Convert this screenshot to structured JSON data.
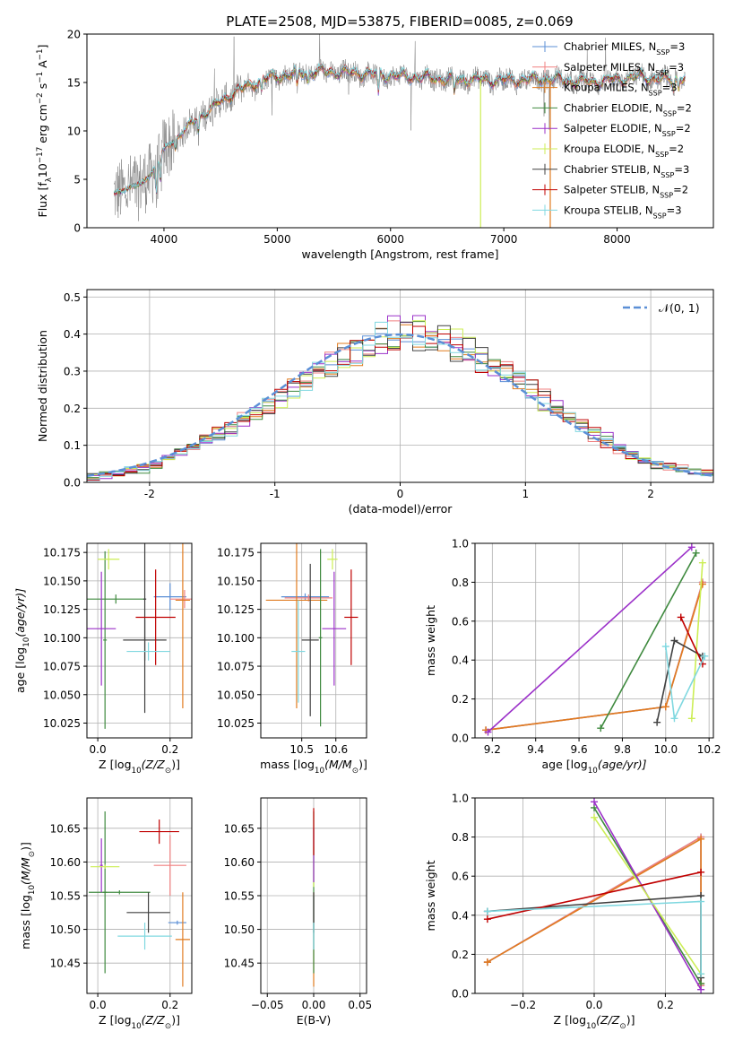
{
  "figure": {
    "title": "PLATE=2508, MJD=53875, FIBERID=0085, z=0.069"
  },
  "colors": {
    "Chabrier MILES": "#5b8fd6",
    "Salpeter MILES": "#f08080",
    "Kroupa MILES": "#e07b1f",
    "Chabrier ELODIE": "#3f8a3f",
    "Salpeter ELODIE": "#9b30c9",
    "Kroupa ELODIE": "#ccee55",
    "Chabrier STELIB": "#404040",
    "Salpeter STELIB": "#c00000",
    "Kroupa STELIB": "#80d8e0",
    "data": "#808080",
    "normal": "#5b8fd6"
  },
  "chart_data": [
    {
      "id": "spectrum",
      "type": "line",
      "title": "PLATE=2508, MJD=53875, FIBERID=0085, z=0.069",
      "xlabel": "wavelength [Angstrom, rest frame]",
      "ylabel_parts": [
        "Flux [f",
        "λ",
        "10",
        "−17",
        " erg cm",
        "−2",
        " s",
        "−1",
        " A",
        "−1",
        "]"
      ],
      "xlim": [
        3320,
        8850
      ],
      "ylim": [
        0,
        20
      ],
      "xticks": [
        4000,
        5000,
        6000,
        7000,
        8000
      ],
      "yticks": [
        0,
        5,
        10,
        15,
        20
      ],
      "grid": false,
      "legend_position": "upper right",
      "legend": [
        {
          "base": "Chabrier MILES, N",
          "sub": "SSP",
          "tail": "=3"
        },
        {
          "base": "Salpeter MILES, N",
          "sub": "SSP",
          "tail": "=3"
        },
        {
          "base": "Kroupa MILES, N",
          "sub": "SSP",
          "tail": "=3"
        },
        {
          "base": "Chabrier ELODIE, N",
          "sub": "SSP",
          "tail": "=2"
        },
        {
          "base": "Salpeter ELODIE, N",
          "sub": "SSP",
          "tail": "=2"
        },
        {
          "base": "Kroupa ELODIE, N",
          "sub": "SSP",
          "tail": "=2"
        },
        {
          "base": "Chabrier STELIB, N",
          "sub": "SSP",
          "tail": "=3"
        },
        {
          "base": "Salpeter STELIB, N",
          "sub": "SSP",
          "tail": "=2"
        },
        {
          "base": "Kroupa STELIB, N",
          "sub": "SSP",
          "tail": "=3"
        }
      ],
      "continuum": {
        "x": [
          3560,
          3700,
          3800,
          3900,
          4000,
          4100,
          4200,
          4300,
          4400,
          4500,
          4600,
          4700,
          4800,
          4900,
          5000,
          5200,
          5400,
          5600,
          5800,
          6000,
          6200,
          6400,
          6600,
          6800,
          7000,
          7200,
          7400,
          7600,
          7800,
          8000,
          8200,
          8400,
          8600
        ],
        "y": [
          3.5,
          4.2,
          4.5,
          5.8,
          8.0,
          9.2,
          10.3,
          11.3,
          12.2,
          13.0,
          13.8,
          14.4,
          14.9,
          15.4,
          15.6,
          16.0,
          16.1,
          16.0,
          15.9,
          15.7,
          15.6,
          15.4,
          15.3,
          15.3,
          15.2,
          15.3,
          15.4,
          15.1,
          15.1,
          15.3,
          15.6,
          15.3,
          15.5
        ]
      },
      "absorption_features": [
        {
          "x": 3933,
          "depth": 0.45
        },
        {
          "x": 3968,
          "depth": 0.35
        },
        {
          "x": 4102,
          "depth": 0.12
        },
        {
          "x": 4304,
          "depth": 0.12
        },
        {
          "x": 4861,
          "depth": 0.08
        },
        {
          "x": 5175,
          "depth": 0.1
        },
        {
          "x": 5270,
          "depth": 0.06
        },
        {
          "x": 5893,
          "depth": 0.14
        },
        {
          "x": 6563,
          "depth": 0.1
        },
        {
          "x": 8498,
          "depth": 0.06
        },
        {
          "x": 8542,
          "depth": 0.07
        },
        {
          "x": 8662,
          "depth": 0.06
        }
      ],
      "masked_gaps": [
        {
          "x": 6795,
          "color_key": "Kroupa ELODIE"
        },
        {
          "x": 7410,
          "color_key": "Kroupa MILES"
        }
      ]
    },
    {
      "id": "residuals",
      "type": "bar",
      "xlabel": "(data-model)/error",
      "ylabel": "Normed distribution",
      "xlim": [
        -2.5,
        2.5
      ],
      "ylim": [
        0,
        0.52
      ],
      "xticks": [
        -2,
        -1,
        0,
        1,
        2
      ],
      "yticks": [
        0.0,
        0.1,
        0.2,
        0.3,
        0.4,
        0.5
      ],
      "grid": true,
      "bin_width": 0.1,
      "legend_position": "upper right",
      "normal_curve": {
        "label": "𝒩(0, 1)",
        "mean": 0,
        "sigma": 1
      },
      "histogram_envelope": {
        "x": [
          -2.5,
          -2.0,
          -1.5,
          -1.0,
          -0.5,
          0.0,
          0.5,
          1.0,
          1.5,
          2.0,
          2.5
        ],
        "y": [
          0.01,
          0.04,
          0.12,
          0.22,
          0.33,
          0.41,
          0.37,
          0.26,
          0.14,
          0.05,
          0.02
        ]
      }
    },
    {
      "id": "age-vs-Z",
      "type": "scatter",
      "xlabel_parts": [
        "Z [log",
        "10",
        "(Z/Z",
        "⊙",
        ")]"
      ],
      "ylabel_parts": [
        "age  [log",
        "10",
        "(age/yr)]"
      ],
      "xlim": [
        -0.03,
        0.26
      ],
      "ylim": [
        10.012,
        10.183
      ],
      "xticks": [
        0.0,
        0.2
      ],
      "xtick_labels": [
        "0.0",
        "0.2"
      ],
      "yticks": [
        10.025,
        10.05,
        10.075,
        10.1,
        10.125,
        10.15,
        10.175
      ],
      "ytick_labels": [
        "10.025",
        "10.050",
        "10.075",
        "10.100",
        "10.125",
        "10.150",
        "10.175"
      ],
      "grid": true,
      "points": [
        {
          "model": "Chabrier MILES",
          "x": 0.2,
          "xerr": 0.045,
          "y": 10.136,
          "yerr": 0.012
        },
        {
          "model": "Salpeter MILES",
          "x": 0.24,
          "xerr": 0.04,
          "y": 10.134,
          "yerr": 0.008
        },
        {
          "model": "Kroupa MILES",
          "x": 0.235,
          "xerr": 0.02,
          "y": 10.133,
          "yerr": 0.095
        },
        {
          "model": "Chabrier ELODIE",
          "x": 0.02,
          "xerr": 0.005,
          "y": 10.098,
          "yerr": 0.078
        },
        {
          "model": "Chabrier ELODIE",
          "x": 0.05,
          "xerr": 0.08,
          "y": 10.134,
          "yerr": 0.004
        },
        {
          "model": "Salpeter ELODIE",
          "x": 0.01,
          "xerr": 0.04,
          "y": 10.108,
          "yerr": 0.05
        },
        {
          "model": "Kroupa ELODIE",
          "x": 0.03,
          "xerr": 0.03,
          "y": 10.169,
          "yerr": 0.009
        },
        {
          "model": "Chabrier STELIB",
          "x": 0.13,
          "xerr": 0.06,
          "y": 10.098,
          "yerr": 0.018
        },
        {
          "model": "Chabrier STELIB",
          "x": 0.13,
          "xerr": 0.004,
          "y": 10.134,
          "yerr": 0.1
        },
        {
          "model": "Salpeter STELIB",
          "x": 0.16,
          "xerr": 0.055,
          "y": 10.118,
          "yerr": 0.042
        },
        {
          "model": "Kroupa STELIB",
          "x": 0.14,
          "xerr": 0.06,
          "y": 10.088,
          "yerr": 0.008
        }
      ]
    },
    {
      "id": "age-vs-mass",
      "type": "scatter",
      "xlabel_parts": [
        "mass [log",
        "10",
        "(M/M",
        "⊙",
        ")]"
      ],
      "ylabel": "",
      "xlim": [
        10.38,
        10.69
      ],
      "ylim": [
        10.012,
        10.183
      ],
      "xticks": [
        10.5,
        10.6
      ],
      "xtick_labels": [
        "10.5",
        "10.6"
      ],
      "yticks": [
        10.025,
        10.05,
        10.075,
        10.1,
        10.125,
        10.15,
        10.175
      ],
      "ytick_labels": [
        "10.025",
        "10.050",
        "10.075",
        "10.100",
        "10.125",
        "10.150",
        "10.175"
      ],
      "grid": true,
      "points": [
        {
          "model": "Chabrier MILES",
          "x": 10.51,
          "xerr": 0.07,
          "y": 10.136,
          "yerr": 0.003
        },
        {
          "model": "Salpeter MILES",
          "x": 10.52,
          "xerr": 0.07,
          "y": 10.135,
          "yerr": 0.003
        },
        {
          "model": "Kroupa MILES",
          "x": 10.485,
          "xerr": 0.09,
          "y": 10.133,
          "yerr": 0.095
        },
        {
          "model": "Chabrier ELODIE",
          "x": 10.555,
          "xerr": 0.005,
          "y": 10.1,
          "yerr": 0.078
        },
        {
          "model": "Salpeter ELODIE",
          "x": 10.595,
          "xerr": 0.035,
          "y": 10.108,
          "yerr": 0.05
        },
        {
          "model": "Kroupa ELODIE",
          "x": 10.59,
          "xerr": 0.015,
          "y": 10.169,
          "yerr": 0.009
        },
        {
          "model": "Chabrier STELIB",
          "x": 10.525,
          "xerr": 0.025,
          "y": 10.098,
          "yerr": 0.067
        },
        {
          "model": "Salpeter STELIB",
          "x": 10.645,
          "xerr": 0.02,
          "y": 10.118,
          "yerr": 0.042
        },
        {
          "model": "Kroupa STELIB",
          "x": 10.49,
          "xerr": 0.02,
          "y": 10.088,
          "yerr": 0.045
        }
      ]
    },
    {
      "id": "mass-weight-vs-age",
      "type": "line",
      "xlabel_parts": [
        "age  [log",
        "10",
        "(age/yr)]"
      ],
      "ylabel": "mass weight",
      "xlim": [
        9.12,
        10.22
      ],
      "ylim": [
        0,
        1.0
      ],
      "xticks": [
        9.2,
        9.4,
        9.6,
        9.8,
        10.0,
        10.2
      ],
      "xtick_labels": [
        "9.2",
        "9.4",
        "9.6",
        "9.8",
        "10.0",
        "10.2"
      ],
      "yticks": [
        0.0,
        0.2,
        0.4,
        0.6,
        0.8,
        1.0
      ],
      "ytick_labels": [
        "0.0",
        "0.2",
        "0.4",
        "0.6",
        "0.8",
        "1.0"
      ],
      "grid": true,
      "series": [
        {
          "model": "Chabrier MILES",
          "x": [
            9.17,
            10.0,
            10.17
          ],
          "y": [
            0.04,
            0.16,
            0.8
          ]
        },
        {
          "model": "Salpeter MILES",
          "x": [
            9.17,
            10.0,
            10.17
          ],
          "y": [
            0.04,
            0.16,
            0.8
          ]
        },
        {
          "model": "Kroupa MILES",
          "x": [
            9.17,
            10.0,
            10.17
          ],
          "y": [
            0.04,
            0.16,
            0.79
          ]
        },
        {
          "model": "Chabrier ELODIE",
          "x": [
            9.7,
            10.14
          ],
          "y": [
            0.05,
            0.95
          ]
        },
        {
          "model": "Salpeter ELODIE",
          "x": [
            9.18,
            10.12
          ],
          "y": [
            0.03,
            0.98
          ]
        },
        {
          "model": "Kroupa ELODIE",
          "x": [
            10.12,
            10.17
          ],
          "y": [
            0.1,
            0.9
          ]
        },
        {
          "model": "Chabrier STELIB",
          "x": [
            9.96,
            10.04,
            10.17
          ],
          "y": [
            0.08,
            0.5,
            0.42
          ]
        },
        {
          "model": "Salpeter STELIB",
          "x": [
            10.07,
            10.17
          ],
          "y": [
            0.62,
            0.38
          ]
        },
        {
          "model": "Kroupa STELIB",
          "x": [
            10.0,
            10.04,
            10.18
          ],
          "y": [
            0.47,
            0.1,
            0.42
          ]
        }
      ]
    },
    {
      "id": "mass-vs-Z",
      "type": "scatter",
      "xlabel_parts": [
        "Z [log",
        "10",
        "(Z/Z",
        "⊙",
        ")]"
      ],
      "ylabel_parts": [
        "mass [log",
        "10",
        "(M/M",
        "⊙",
        ")]"
      ],
      "xlim": [
        -0.03,
        0.26
      ],
      "ylim": [
        10.405,
        10.695
      ],
      "xticks": [
        0.0,
        0.2
      ],
      "xtick_labels": [
        "0.0",
        "0.2"
      ],
      "yticks": [
        10.45,
        10.5,
        10.55,
        10.6,
        10.65
      ],
      "ytick_labels": [
        "10.45",
        "10.50",
        "10.55",
        "10.60",
        "10.65"
      ],
      "grid": true,
      "points": [
        {
          "model": "Chabrier MILES",
          "x": 0.22,
          "xerr": 0.025,
          "y": 10.51,
          "yerr": 0.003
        },
        {
          "model": "Salpeter MILES",
          "x": 0.2,
          "xerr": 0.045,
          "y": 10.595,
          "yerr": 0.045
        },
        {
          "model": "Kroupa MILES",
          "x": 0.235,
          "xerr": 0.02,
          "y": 10.485,
          "yerr": 0.07
        },
        {
          "model": "Chabrier ELODIE",
          "x": 0.02,
          "xerr": 0.005,
          "y": 10.555,
          "yerr": 0.12
        },
        {
          "model": "Chabrier ELODIE",
          "x": 0.06,
          "xerr": 0.085,
          "y": 10.555,
          "yerr": 0.003
        },
        {
          "model": "Salpeter ELODIE",
          "x": 0.01,
          "xerr": 0.004,
          "y": 10.595,
          "yerr": 0.04
        },
        {
          "model": "Kroupa ELODIE",
          "x": 0.02,
          "xerr": 0.04,
          "y": 10.593,
          "yerr": 0.003
        },
        {
          "model": "Chabrier STELIB",
          "x": 0.14,
          "xerr": 0.06,
          "y": 10.525,
          "yerr": 0.03
        },
        {
          "model": "Salpeter STELIB",
          "x": 0.17,
          "xerr": 0.055,
          "y": 10.645,
          "yerr": 0.018
        },
        {
          "model": "Kroupa STELIB",
          "x": 0.13,
          "xerr": 0.075,
          "y": 10.49,
          "yerr": 0.02
        }
      ]
    },
    {
      "id": "mass-vs-ebv",
      "type": "scatter",
      "xlabel": "E(B-V)",
      "ylabel": "",
      "xlim": [
        -0.057,
        0.057
      ],
      "ylim": [
        10.405,
        10.695
      ],
      "xticks": [
        -0.05,
        0.0,
        0.05
      ],
      "xtick_labels": [
        "−0.05",
        "0.00",
        "0.05"
      ],
      "yticks": [
        10.45,
        10.5,
        10.55,
        10.6,
        10.65
      ],
      "ytick_labels": [
        "10.45",
        "10.50",
        "10.55",
        "10.60",
        "10.65"
      ],
      "grid": true,
      "points": [
        {
          "model": "Kroupa MILES",
          "x": 0.0,
          "xerr": 0.0,
          "y": 10.485,
          "yerr": 0.07
        },
        {
          "model": "Chabrier MILES",
          "x": 0.0,
          "xerr": 0.0,
          "y": 10.51,
          "yerr": 0.04
        },
        {
          "model": "Chabrier ELODIE",
          "x": 0.0,
          "xerr": 0.0,
          "y": 10.555,
          "yerr": 0.12
        },
        {
          "model": "Kroupa ELODIE",
          "x": 0.0,
          "xerr": 0.0,
          "y": 10.593,
          "yerr": 0.03
        },
        {
          "model": "Salpeter ELODIE",
          "x": 0.0,
          "xerr": 0.0,
          "y": 10.61,
          "yerr": 0.04
        },
        {
          "model": "Chabrier STELIB",
          "x": 0.0,
          "xerr": 0.0,
          "y": 10.525,
          "yerr": 0.03
        },
        {
          "model": "Salpeter STELIB",
          "x": 0.0,
          "xerr": 0.0,
          "y": 10.645,
          "yerr": 0.035
        },
        {
          "model": "Kroupa STELIB",
          "x": 0.0,
          "xerr": 0.0,
          "y": 10.49,
          "yerr": 0.02
        }
      ]
    },
    {
      "id": "mass-weight-vs-Z",
      "type": "line",
      "xlabel_parts": [
        "Z [log",
        "10",
        "(Z/Z",
        "⊙",
        ")]"
      ],
      "ylabel": "mass weight",
      "xlim": [
        -0.335,
        0.335
      ],
      "ylim": [
        0,
        1.0
      ],
      "xticks": [
        -0.2,
        0.0,
        0.2
      ],
      "xtick_labels": [
        "−0.2",
        "0.0",
        "0.2"
      ],
      "yticks": [
        0.0,
        0.2,
        0.4,
        0.6,
        0.8,
        1.0
      ],
      "ytick_labels": [
        "0.0",
        "0.2",
        "0.4",
        "0.6",
        "0.8",
        "1.0"
      ],
      "grid": true,
      "series": [
        {
          "model": "Chabrier MILES",
          "x": [
            -0.3,
            0.3,
            0.3
          ],
          "y": [
            0.16,
            0.8,
            0.04
          ]
        },
        {
          "model": "Salpeter MILES",
          "x": [
            -0.3,
            0.3,
            0.3
          ],
          "y": [
            0.16,
            0.8,
            0.04
          ]
        },
        {
          "model": "Kroupa MILES",
          "x": [
            -0.3,
            0.3,
            0.3
          ],
          "y": [
            0.16,
            0.79,
            0.05
          ]
        },
        {
          "model": "Chabrier ELODIE",
          "x": [
            0.0,
            0.3
          ],
          "y": [
            0.95,
            0.05
          ]
        },
        {
          "model": "Salpeter ELODIE",
          "x": [
            0.0,
            0.3
          ],
          "y": [
            0.98,
            0.02
          ]
        },
        {
          "model": "Kroupa ELODIE",
          "x": [
            0.0,
            0.3
          ],
          "y": [
            0.9,
            0.1
          ]
        },
        {
          "model": "Chabrier STELIB",
          "x": [
            -0.3,
            0.3,
            0.3
          ],
          "y": [
            0.42,
            0.5,
            0.08
          ]
        },
        {
          "model": "Salpeter STELIB",
          "x": [
            -0.3,
            0.3
          ],
          "y": [
            0.38,
            0.62
          ]
        },
        {
          "model": "Kroupa STELIB",
          "x": [
            -0.3,
            0.3,
            0.3
          ],
          "y": [
            0.42,
            0.47,
            0.1
          ]
        }
      ]
    }
  ]
}
